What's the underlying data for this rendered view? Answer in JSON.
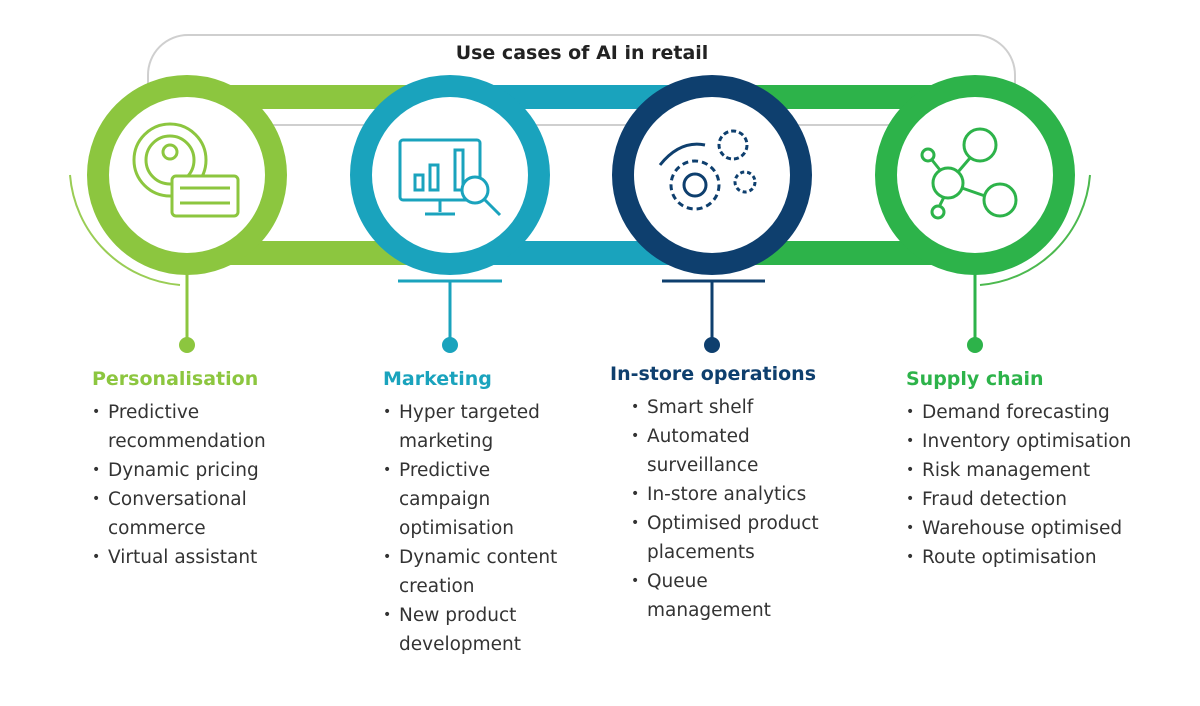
{
  "title": "Use cases of AI in retail",
  "columns": [
    {
      "heading": "Personalisation",
      "items": [
        "Predictive recommendation",
        "Dynamic pricing",
        "Conversational commerce",
        "Virtual assistant"
      ]
    },
    {
      "heading": "Marketing",
      "items": [
        "Hyper targeted marketing",
        "Predictive campaign optimisation",
        "Dynamic content creation",
        "New product development"
      ]
    },
    {
      "heading": "In-store operations",
      "items": [
        "Smart shelf",
        "Automated surveillance",
        "In-store analytics",
        "Optimised product placements",
        "Queue management"
      ]
    },
    {
      "heading": "Supply chain",
      "items": [
        "Demand forecasting",
        "Inventory optimisation",
        "Risk management",
        "Fraud detection",
        "Warehouse optimised",
        "Route optimisation"
      ]
    }
  ]
}
